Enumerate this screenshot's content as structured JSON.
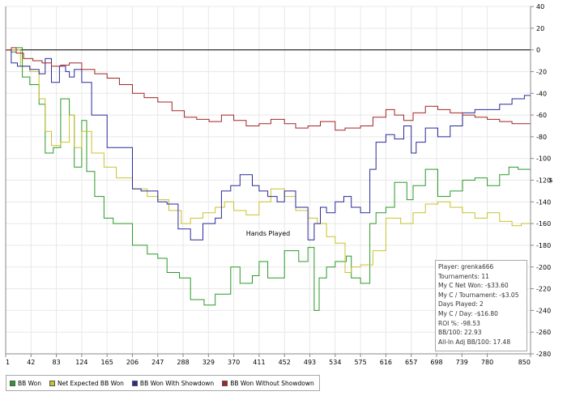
{
  "chart_data": {
    "type": "line",
    "title": "",
    "xlabel": "Hands Played",
    "ylabel": "$",
    "xlim": [
      1,
      850
    ],
    "ylim": [
      -280,
      40
    ],
    "x_ticks": [
      "1",
      "42",
      "83",
      "124",
      "165",
      "206",
      "247",
      "288",
      "329",
      "370",
      "411",
      "452",
      "493",
      "534",
      "575",
      "616",
      "657",
      "698",
      "739",
      "780",
      "850"
    ],
    "y_ticks": [
      40,
      20,
      0,
      -20,
      -40,
      -60,
      -80,
      -100,
      -120,
      -140,
      -160,
      -180,
      -200,
      -220,
      -240,
      -260,
      -280
    ],
    "series": [
      {
        "name": "BB Won",
        "color": "#2a9a2a",
        "x": [
          1,
          10,
          18,
          28,
          40,
          55,
          65,
          78,
          90,
          104,
          112,
          124,
          132,
          145,
          160,
          175,
          206,
          230,
          247,
          262,
          282,
          300,
          322,
          340,
          365,
          380,
          400,
          411,
          425,
          452,
          475,
          490,
          500,
          508,
          520,
          534,
          552,
          560,
          575,
          590,
          600,
          616,
          630,
          650,
          660,
          680,
          700,
          720,
          740,
          760,
          780,
          800,
          815,
          830,
          850
        ],
        "y": [
          0,
          -2,
          2,
          -25,
          -32,
          -50,
          -95,
          -90,
          -45,
          -60,
          -108,
          -65,
          -112,
          -135,
          -155,
          -160,
          -180,
          -188,
          -192,
          -205,
          -210,
          -230,
          -235,
          -225,
          -200,
          -215,
          -208,
          -195,
          -210,
          -185,
          -195,
          -182,
          -240,
          -210,
          -200,
          -195,
          -190,
          -210,
          -215,
          -160,
          -150,
          -145,
          -122,
          -138,
          -125,
          -110,
          -135,
          -130,
          -120,
          -118,
          -125,
          -115,
          -108,
          -110,
          -112
        ]
      },
      {
        "name": "Net Expected BB Won",
        "color": "#c9c22c",
        "x": [
          1,
          15,
          25,
          40,
          55,
          65,
          75,
          90,
          104,
          112,
          124,
          140,
          160,
          180,
          206,
          230,
          247,
          265,
          285,
          300,
          320,
          340,
          355,
          370,
          390,
          411,
          430,
          452,
          470,
          490,
          505,
          520,
          534,
          550,
          560,
          575,
          595,
          616,
          640,
          660,
          680,
          700,
          720,
          740,
          760,
          780,
          800,
          820,
          835,
          850
        ],
        "y": [
          0,
          0,
          -15,
          -20,
          -45,
          -75,
          -88,
          -85,
          -60,
          -90,
          -75,
          -95,
          -108,
          -118,
          -128,
          -135,
          -138,
          -148,
          -160,
          -155,
          -150,
          -145,
          -140,
          -148,
          -152,
          -140,
          -128,
          -135,
          -148,
          -155,
          -160,
          -172,
          -178,
          -205,
          -200,
          -198,
          -185,
          -155,
          -160,
          -150,
          -142,
          -140,
          -145,
          -150,
          -155,
          -150,
          -158,
          -162,
          -160,
          -170
        ]
      },
      {
        "name": "BB Won With Showdown",
        "color": "#2a2a9a",
        "x": [
          1,
          10,
          20,
          30,
          40,
          55,
          65,
          75,
          88,
          98,
          104,
          112,
          124,
          140,
          165,
          206,
          220,
          247,
          262,
          280,
          300,
          320,
          340,
          350,
          365,
          380,
          400,
          411,
          425,
          440,
          452,
          470,
          490,
          500,
          510,
          520,
          534,
          548,
          560,
          575,
          590,
          600,
          616,
          630,
          645,
          657,
          665,
          680,
          700,
          720,
          740,
          760,
          780,
          800,
          820,
          840,
          850
        ],
        "y": [
          0,
          -12,
          -15,
          -15,
          -18,
          -22,
          -8,
          -30,
          -15,
          -20,
          -25,
          -18,
          -30,
          -60,
          -90,
          -128,
          -130,
          -140,
          -142,
          -165,
          -175,
          -160,
          -155,
          -130,
          -125,
          -115,
          -125,
          -130,
          -135,
          -140,
          -130,
          -145,
          -175,
          -160,
          -145,
          -150,
          -140,
          -135,
          -145,
          -150,
          -110,
          -85,
          -78,
          -82,
          -70,
          -95,
          -85,
          -72,
          -80,
          -70,
          -58,
          -55,
          -55,
          -50,
          -45,
          -42,
          -50
        ]
      },
      {
        "name": "BB Won Without Showdown",
        "color": "#a32525",
        "x": [
          1,
          10,
          18,
          30,
          45,
          60,
          75,
          90,
          104,
          124,
          145,
          165,
          185,
          206,
          225,
          247,
          270,
          290,
          310,
          330,
          350,
          370,
          390,
          411,
          430,
          452,
          470,
          490,
          510,
          534,
          550,
          575,
          595,
          616,
          630,
          645,
          660,
          680,
          700,
          720,
          740,
          760,
          780,
          800,
          820,
          850
        ],
        "y": [
          0,
          2,
          -3,
          -8,
          -10,
          -12,
          -15,
          -14,
          -12,
          -18,
          -22,
          -26,
          -32,
          -40,
          -44,
          -48,
          -56,
          -62,
          -64,
          -66,
          -60,
          -65,
          -70,
          -68,
          -64,
          -68,
          -72,
          -70,
          -66,
          -74,
          -72,
          -70,
          -62,
          -55,
          -60,
          -65,
          -58,
          -52,
          -55,
          -58,
          -60,
          -62,
          -64,
          -66,
          -68,
          -72
        ]
      }
    ]
  },
  "stats": [
    "Player: grenka666",
    "Tournaments: 11",
    "My C Net Won: -$33.60",
    "My C / Tournament: -$3.05",
    "Days Played: 2",
    "My C / Day: -$16.80",
    "ROI %: -98.53",
    "BB/100: 22.93",
    "All-In Adj BB/100: 17.48"
  ],
  "legend": [
    {
      "label": "BB Won",
      "color": "#2a9a2a"
    },
    {
      "label": "Net Expected BB Won",
      "color": "#c9c22c"
    },
    {
      "label": "BB Won With Showdown",
      "color": "#2a2a9a"
    },
    {
      "label": "BB Won Without Showdown",
      "color": "#a32525"
    }
  ]
}
